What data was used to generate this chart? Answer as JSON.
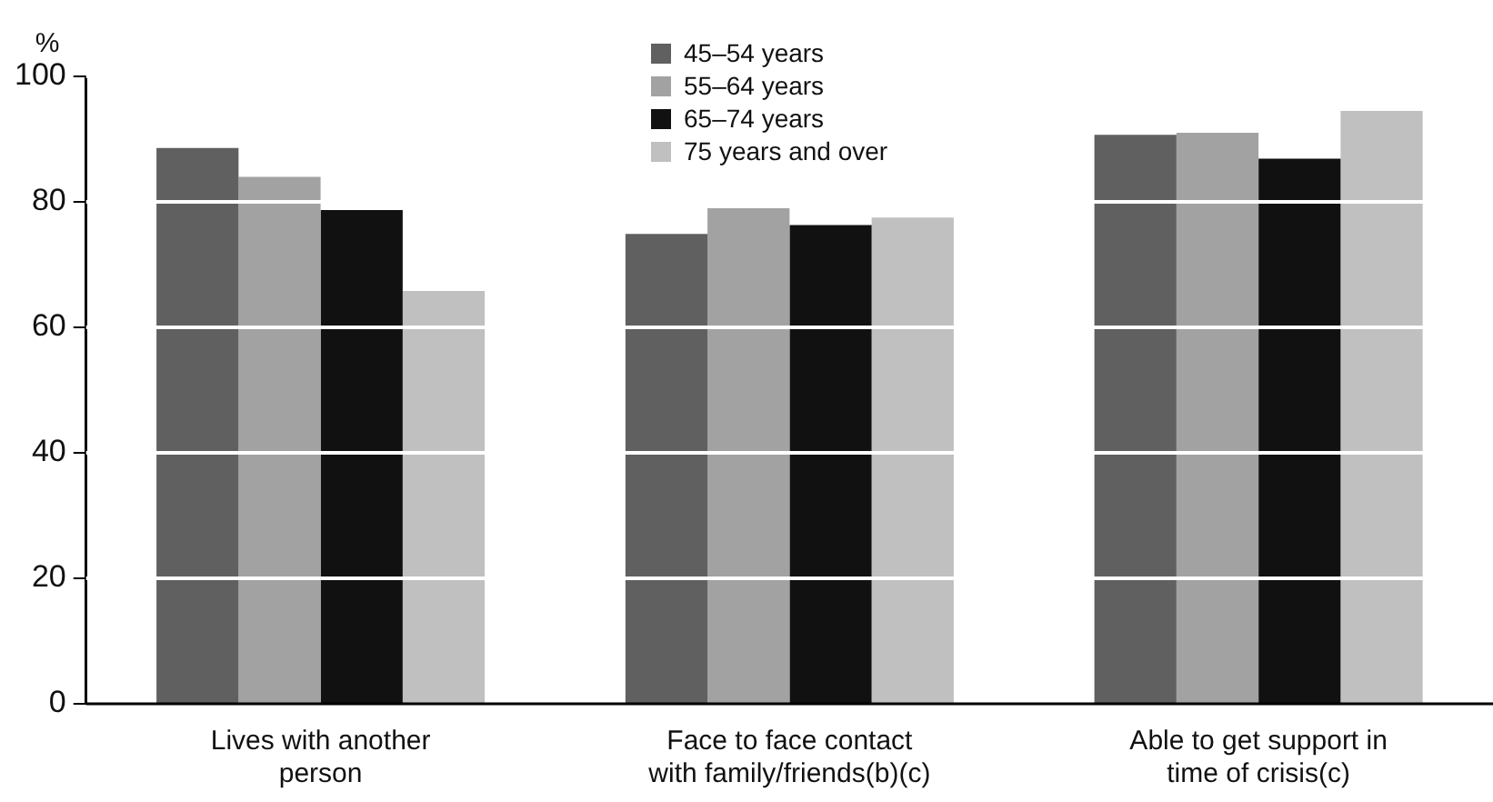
{
  "chart_data": {
    "type": "bar",
    "ylabel": "%",
    "categories": [
      "Lives with another person",
      "Face to face contact with family/friends(b)(c)",
      "Able to get support in time of crisis(c)"
    ],
    "series": [
      {
        "name": "45–54 years",
        "color": "#606060",
        "values": [
          88.6,
          74.9,
          90.7
        ]
      },
      {
        "name": "55–64 years",
        "color": "#a2a2a2",
        "values": [
          84.0,
          79.0,
          91.0
        ]
      },
      {
        "name": "65–74 years",
        "color": "#111111",
        "values": [
          78.7,
          76.3,
          86.9
        ]
      },
      {
        "name": "75 years and over",
        "color": "#c0c0c0",
        "values": [
          65.8,
          77.5,
          94.5
        ]
      }
    ],
    "ylim": [
      0,
      100
    ],
    "yticks": [
      0,
      20,
      40,
      60,
      80,
      100
    ],
    "grid": "y",
    "legend": "top"
  }
}
